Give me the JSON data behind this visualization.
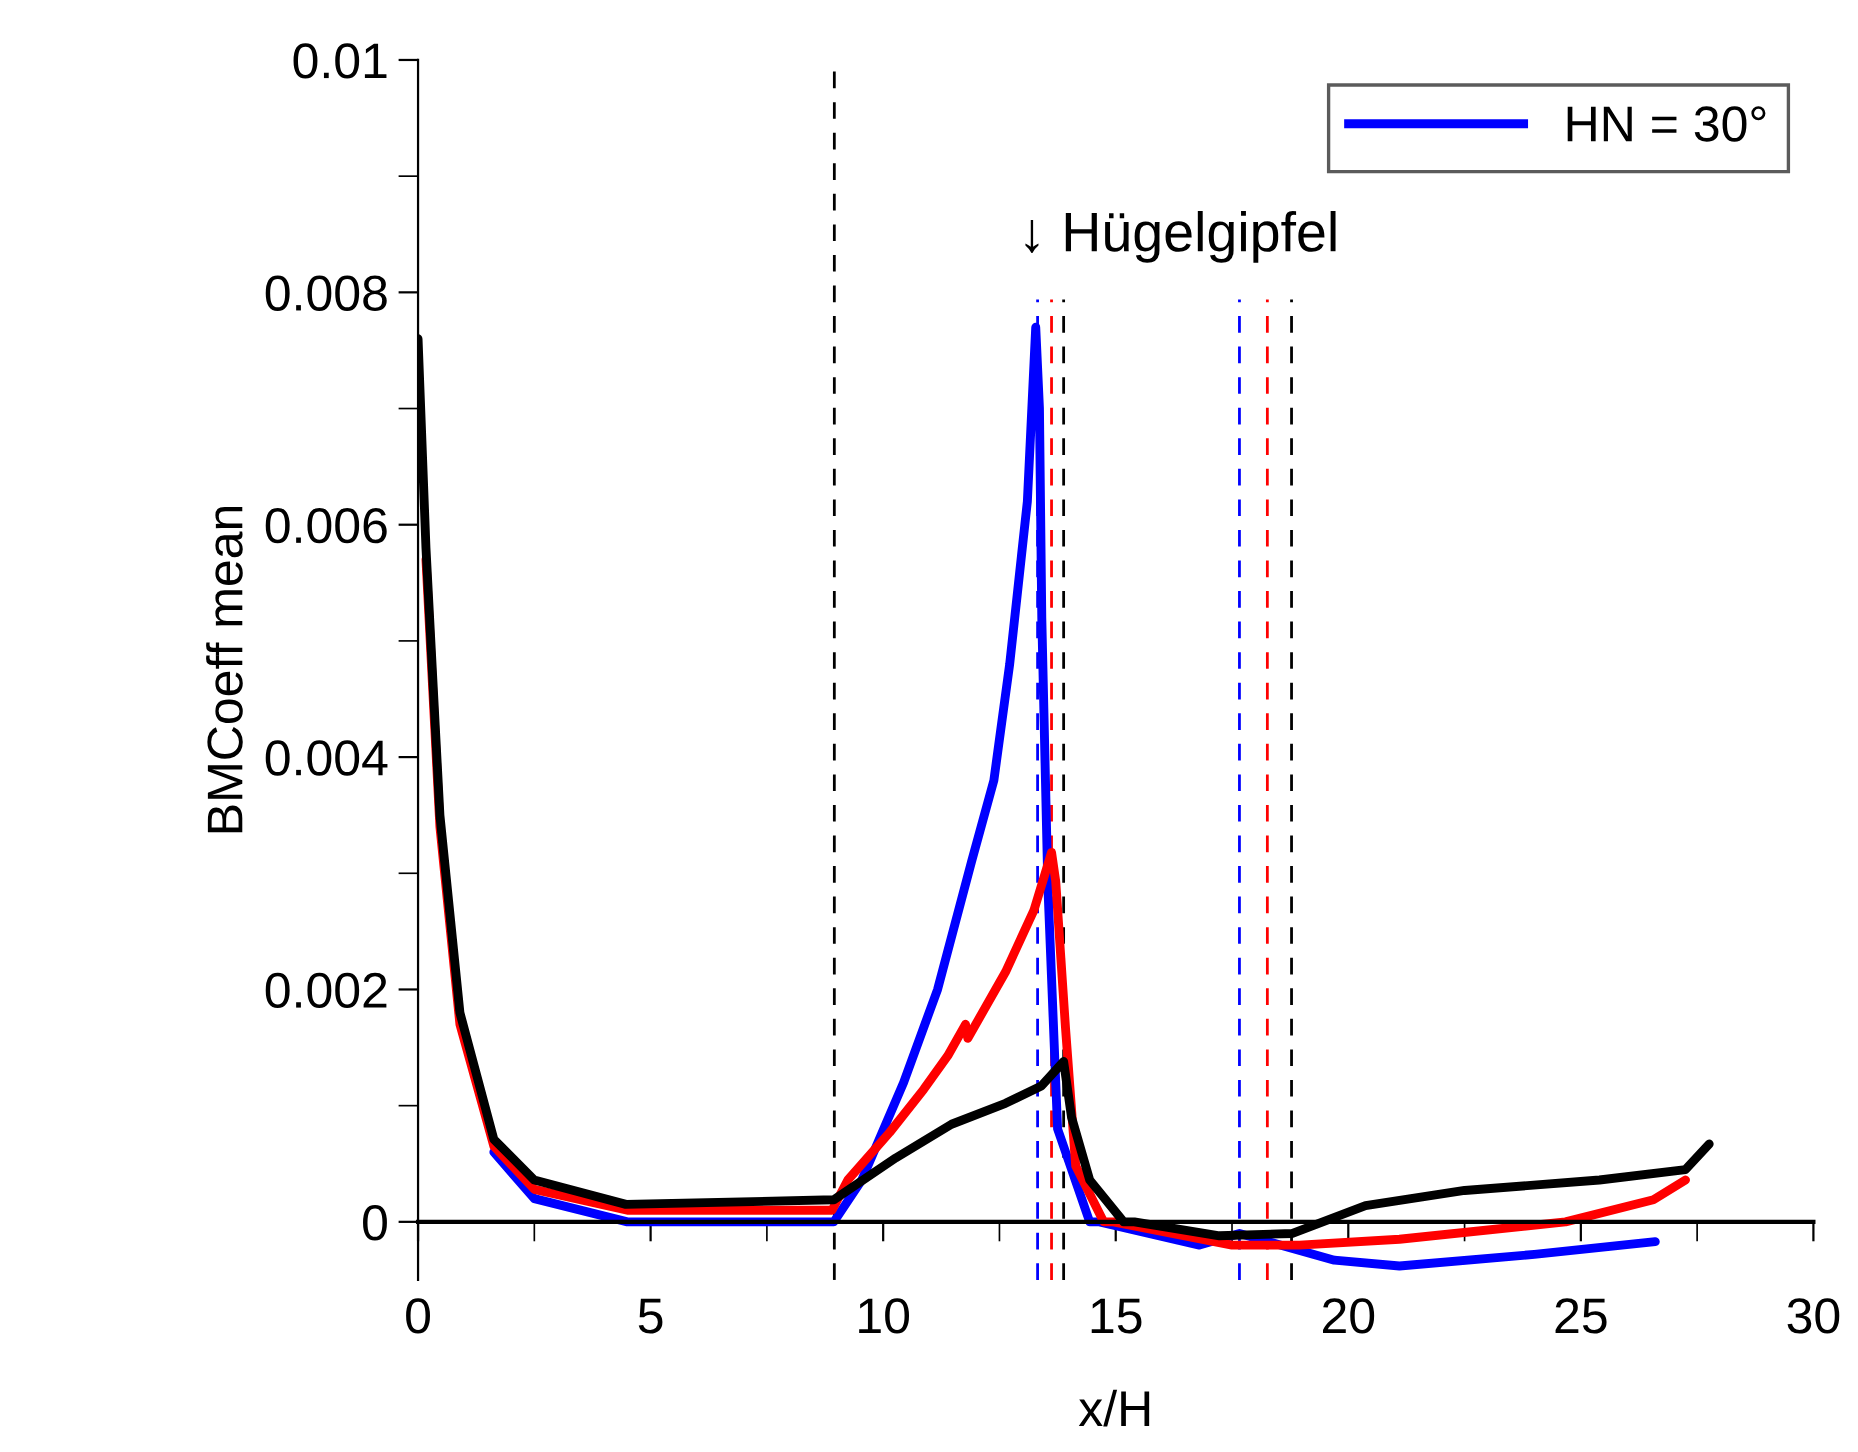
{
  "chart_data": {
    "type": "line",
    "xlabel": "x/H",
    "ylabel": "BMCoeff mean",
    "xlim": [
      0,
      30
    ],
    "xticks": [
      0,
      5,
      10,
      15,
      20,
      25,
      30
    ],
    "ylim": [
      -0.0005,
      0.01
    ],
    "yticks": [
      0,
      0.002,
      0.004,
      0.006,
      0.008,
      0.01
    ],
    "grid": false,
    "legend": "top right",
    "marker": "none",
    "line_style": "solid",
    "series": [
      {
        "name": "HN = 30°",
        "color": "#0000ff",
        "x": [
          1.63,
          2.5,
          4.5,
          8.94,
          9.54,
          10.44,
          11.17,
          11.9,
          12.38,
          12.72,
          13.1,
          13.28,
          13.36,
          13.41,
          13.54,
          13.75,
          14.44,
          14.65,
          16.8,
          17.66,
          19.7,
          21.1,
          24,
          26.6
        ],
        "values": [
          0.0006,
          0.0002,
          0.0,
          0.0,
          0.00036,
          0.0012,
          0.002,
          0.0031,
          0.0038,
          0.0048,
          0.0062,
          0.0077,
          0.007,
          0.0052,
          0.0029,
          0.0008,
          0.0,
          0.0,
          -0.0002,
          -0.0001,
          -0.00033,
          -0.00038,
          -0.00028,
          -0.00017
        ]
      },
      {
        "color": "#ff0000",
        "x": [
          0.17,
          0.47,
          0.9,
          1.63,
          2.5,
          4.5,
          8.9,
          9.24,
          10.14,
          10.87,
          11.39,
          11.77,
          11.82,
          12.63,
          13.24,
          13.62,
          13.71,
          13.92,
          14.14,
          14.74,
          14.95,
          17.5,
          18.95,
          21.1,
          24.67,
          26.56,
          27.25
        ],
        "values": [
          0.0057,
          0.0034,
          0.0017,
          0.00065,
          0.00028,
          0.0001,
          0.0001,
          0.00036,
          0.00077,
          0.00114,
          0.00143,
          0.0017,
          0.00158,
          0.00215,
          0.00268,
          0.00318,
          0.00293,
          0.00167,
          0.00048,
          0.0,
          0.0,
          -0.0002,
          -0.0002,
          -0.00015,
          0.0,
          0.00019,
          0.00036
        ]
      },
      {
        "color": "#000000",
        "x": [
          0,
          0.17,
          0.47,
          0.9,
          1.63,
          2.5,
          4.47,
          8.94,
          10.27,
          11.47,
          12.63,
          13.4,
          13.88,
          14.05,
          14.44,
          15.17,
          15.4,
          17.23,
          18.8,
          20.37,
          22.5,
          25.4,
          27.25,
          27.76
        ],
        "values": [
          0.0076,
          0.0058,
          0.0035,
          0.0018,
          0.00071,
          0.00036,
          0.00015,
          0.00019,
          0.00055,
          0.00084,
          0.00102,
          0.00117,
          0.00138,
          0.0009,
          0.00036,
          0.0,
          0.0,
          -0.00012,
          -0.0001,
          0.00014,
          0.00027,
          0.00036,
          0.00045,
          0.00067
        ]
      }
    ],
    "ref_lines": [
      {
        "axis": "x",
        "value": 8.95,
        "color": "#000000",
        "line_style": "dashed"
      },
      {
        "axis": "x",
        "value": 13.32,
        "color": "#0000ff",
        "line_style": "dashed"
      },
      {
        "axis": "x",
        "value": 13.62,
        "color": "#ff0000",
        "line_style": "dashed"
      },
      {
        "axis": "x",
        "value": 13.88,
        "color": "#000000",
        "line_style": "dashed"
      },
      {
        "axis": "x",
        "value": 17.66,
        "color": "#0000ff",
        "line_style": "dashed"
      },
      {
        "axis": "x",
        "value": 18.26,
        "color": "#ff0000",
        "line_style": "dashed"
      },
      {
        "axis": "x",
        "value": 18.78,
        "color": "#000000",
        "line_style": "dashed"
      }
    ],
    "annotations": [
      "↓ Hügelgipfel"
    ]
  }
}
